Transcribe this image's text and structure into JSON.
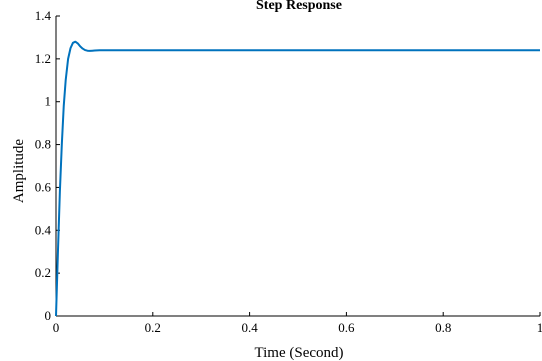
{
  "chart_data": {
    "type": "line",
    "title": "Step Response",
    "xlabel": "Time (Second)",
    "ylabel": "Amplitude",
    "xlim": [
      0,
      1
    ],
    "ylim": [
      0,
      1.4
    ],
    "xticks": [
      "0",
      "0.2",
      "0.4",
      "0.6",
      "0.8",
      "1"
    ],
    "yticks": [
      "0",
      "0.2",
      "0.4",
      "0.6",
      "0.8",
      "1",
      "1.2",
      "1.4"
    ],
    "grid": false,
    "legend": "none",
    "line_color": "#0072BD",
    "series": [
      {
        "x": [
          0,
          0.004,
          0.008,
          0.012,
          0.016,
          0.02,
          0.025,
          0.03,
          0.035,
          0.04,
          0.045,
          0.05,
          0.055,
          0.06,
          0.065,
          0.07,
          0.075,
          0.08,
          0.09,
          0.1,
          0.2,
          0.4,
          0.6,
          0.8,
          1.0
        ],
        "y": [
          0,
          0.3,
          0.58,
          0.8,
          0.98,
          1.1,
          1.2,
          1.25,
          1.275,
          1.28,
          1.272,
          1.258,
          1.248,
          1.241,
          1.238,
          1.237,
          1.238,
          1.239,
          1.24,
          1.24,
          1.24,
          1.24,
          1.24,
          1.24,
          1.24
        ]
      }
    ]
  }
}
